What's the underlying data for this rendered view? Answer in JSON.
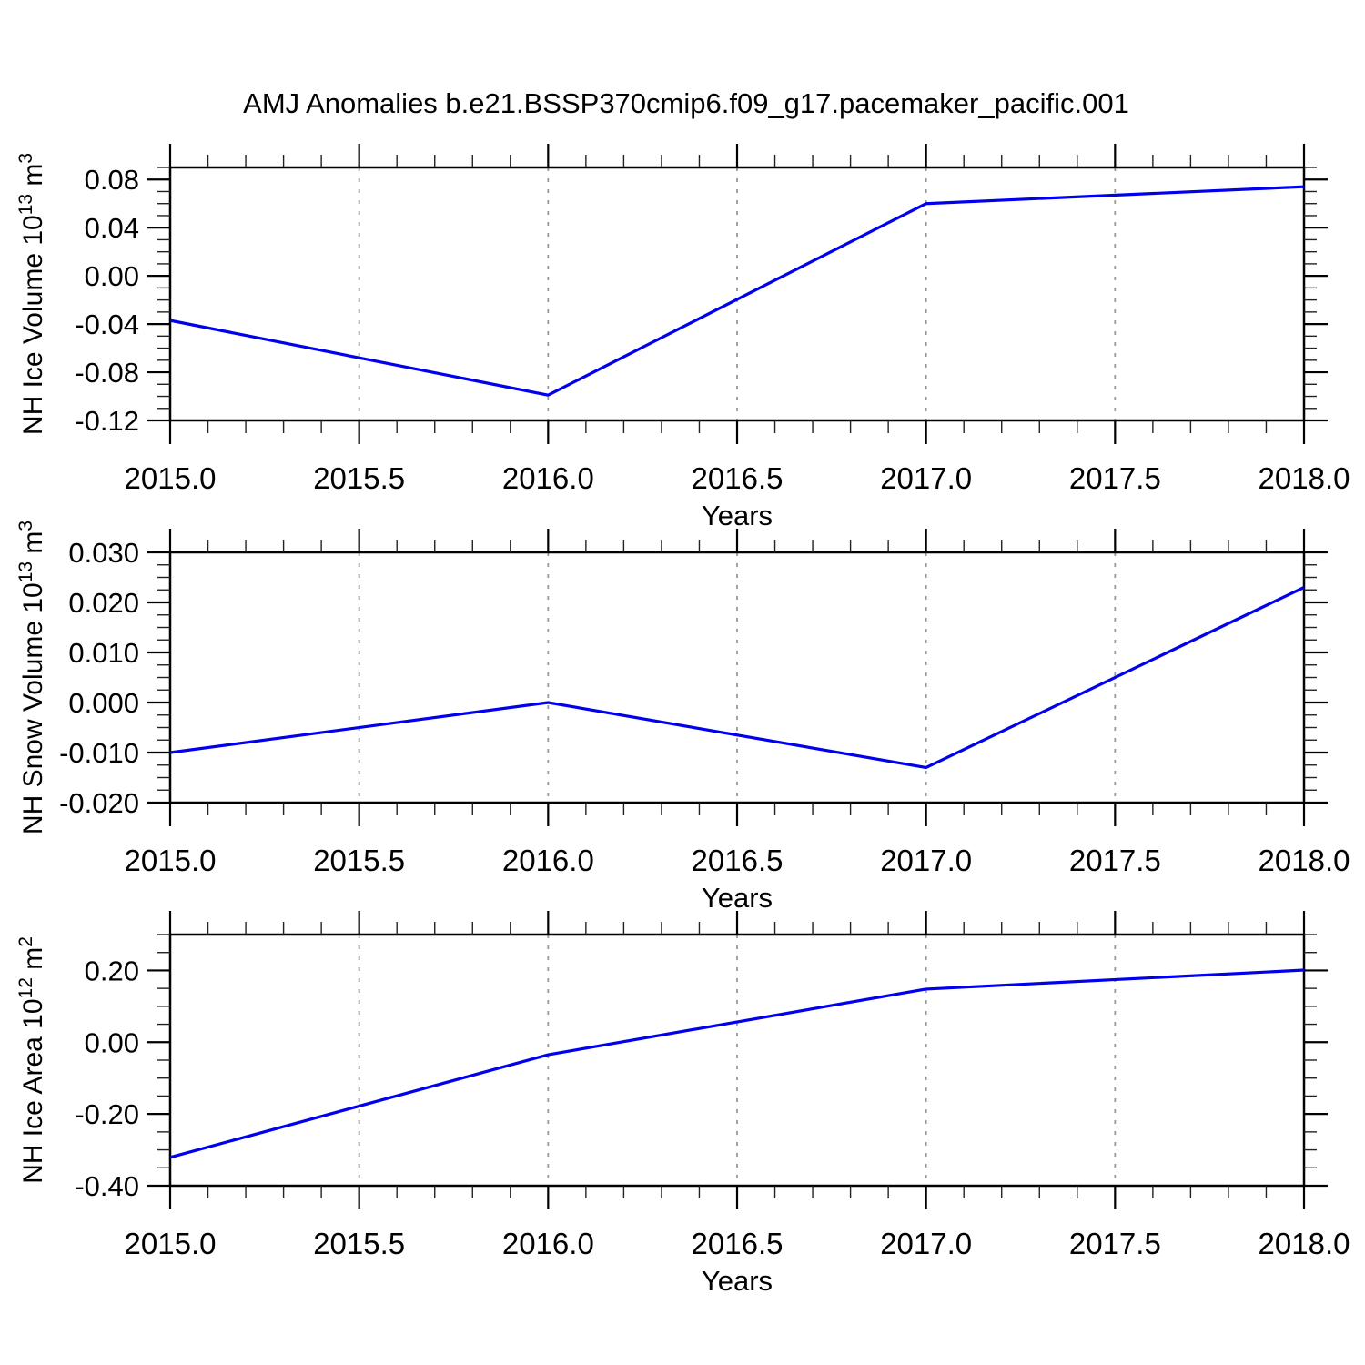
{
  "header": {
    "title": "AMJ Anomalies b.e21.BSSP370cmip6.f09_g17.pacemaker_pacific.001"
  },
  "colors": {
    "line": "#0000ee",
    "axis": "#000000",
    "grid": "#999999"
  },
  "chart_data": [
    {
      "type": "line",
      "panel": "nh-ice-volume",
      "ylabel": "NH Ice Volume 10^13 m^3",
      "ylabel_segments": [
        {
          "t": "NH Ice Volume 10",
          "sup": false
        },
        {
          "t": "13",
          "sup": true
        },
        {
          "t": " m",
          "sup": false
        },
        {
          "t": "3",
          "sup": true
        }
      ],
      "xlabel": "Years",
      "x": [
        2015.0,
        2016.0,
        2017.0,
        2018.0
      ],
      "y": [
        -0.037,
        -0.099,
        0.06,
        0.074
      ],
      "xlim": [
        2015.0,
        2018.0
      ],
      "ylim": [
        -0.12,
        0.09
      ],
      "xticks": [
        2015.0,
        2015.5,
        2016.0,
        2016.5,
        2017.0,
        2017.5,
        2018.0
      ],
      "xtick_labels": [
        "2015.0",
        "2015.5",
        "2016.0",
        "2016.5",
        "2017.0",
        "2017.5",
        "2018.0"
      ],
      "yticks": [
        0.08,
        0.04,
        0.0,
        -0.04,
        -0.08,
        -0.12
      ],
      "ytick_labels": [
        "0.08",
        "0.04",
        "0.00",
        "-0.04",
        "-0.08",
        "-0.12"
      ],
      "x_minor_step": 0.1,
      "y_minor_step": 0.01,
      "gridlines_x": [
        2015.5,
        2016.0,
        2016.5,
        2017.0,
        2017.5
      ],
      "grid": "vertical-dashed",
      "legend": null
    },
    {
      "type": "line",
      "panel": "nh-snow-volume",
      "ylabel": "NH Snow Volume 10^13 m^3",
      "ylabel_segments": [
        {
          "t": "NH Snow Volume 10",
          "sup": false
        },
        {
          "t": "13",
          "sup": true
        },
        {
          "t": " m",
          "sup": false
        },
        {
          "t": "3",
          "sup": true
        }
      ],
      "xlabel": "Years",
      "x": [
        2015.0,
        2016.0,
        2017.0,
        2018.0
      ],
      "y": [
        -0.01,
        0.0,
        -0.013,
        0.023
      ],
      "xlim": [
        2015.0,
        2018.0
      ],
      "ylim": [
        -0.02,
        0.03
      ],
      "xticks": [
        2015.0,
        2015.5,
        2016.0,
        2016.5,
        2017.0,
        2017.5,
        2018.0
      ],
      "xtick_labels": [
        "2015.0",
        "2015.5",
        "2016.0",
        "2016.5",
        "2017.0",
        "2017.5",
        "2018.0"
      ],
      "yticks": [
        0.03,
        0.02,
        0.01,
        0.0,
        -0.01,
        -0.02
      ],
      "ytick_labels": [
        "0.030",
        "0.020",
        "0.010",
        "0.000",
        "-0.010",
        "-0.020"
      ],
      "x_minor_step": 0.1,
      "y_minor_step": 0.0025,
      "gridlines_x": [
        2015.5,
        2016.0,
        2016.5,
        2017.0,
        2017.5
      ],
      "grid": "vertical-dashed",
      "legend": null
    },
    {
      "type": "line",
      "panel": "nh-ice-area",
      "ylabel": "NH Ice Area 10^12 m^2",
      "ylabel_segments": [
        {
          "t": "NH Ice Area 10",
          "sup": false
        },
        {
          "t": "12",
          "sup": true
        },
        {
          "t": " m",
          "sup": false
        },
        {
          "t": "2",
          "sup": true
        }
      ],
      "xlabel": "Years",
      "x": [
        2015.0,
        2016.0,
        2017.0,
        2018.0
      ],
      "y": [
        -0.321,
        -0.035,
        0.148,
        0.201
      ],
      "xlim": [
        2015.0,
        2018.0
      ],
      "ylim": [
        -0.4,
        0.3
      ],
      "xticks": [
        2015.0,
        2015.5,
        2016.0,
        2016.5,
        2017.0,
        2017.5,
        2018.0
      ],
      "xtick_labels": [
        "2015.0",
        "2015.5",
        "2016.0",
        "2016.5",
        "2017.0",
        "2017.5",
        "2018.0"
      ],
      "yticks": [
        0.2,
        0.0,
        -0.2,
        -0.4
      ],
      "ytick_labels": [
        "0.20",
        "0.00",
        "-0.20",
        "-0.40"
      ],
      "x_minor_step": 0.1,
      "y_minor_step": 0.05,
      "gridlines_x": [
        2015.5,
        2016.0,
        2016.5,
        2017.0,
        2017.5
      ],
      "grid": "vertical-dashed",
      "legend": null
    }
  ]
}
